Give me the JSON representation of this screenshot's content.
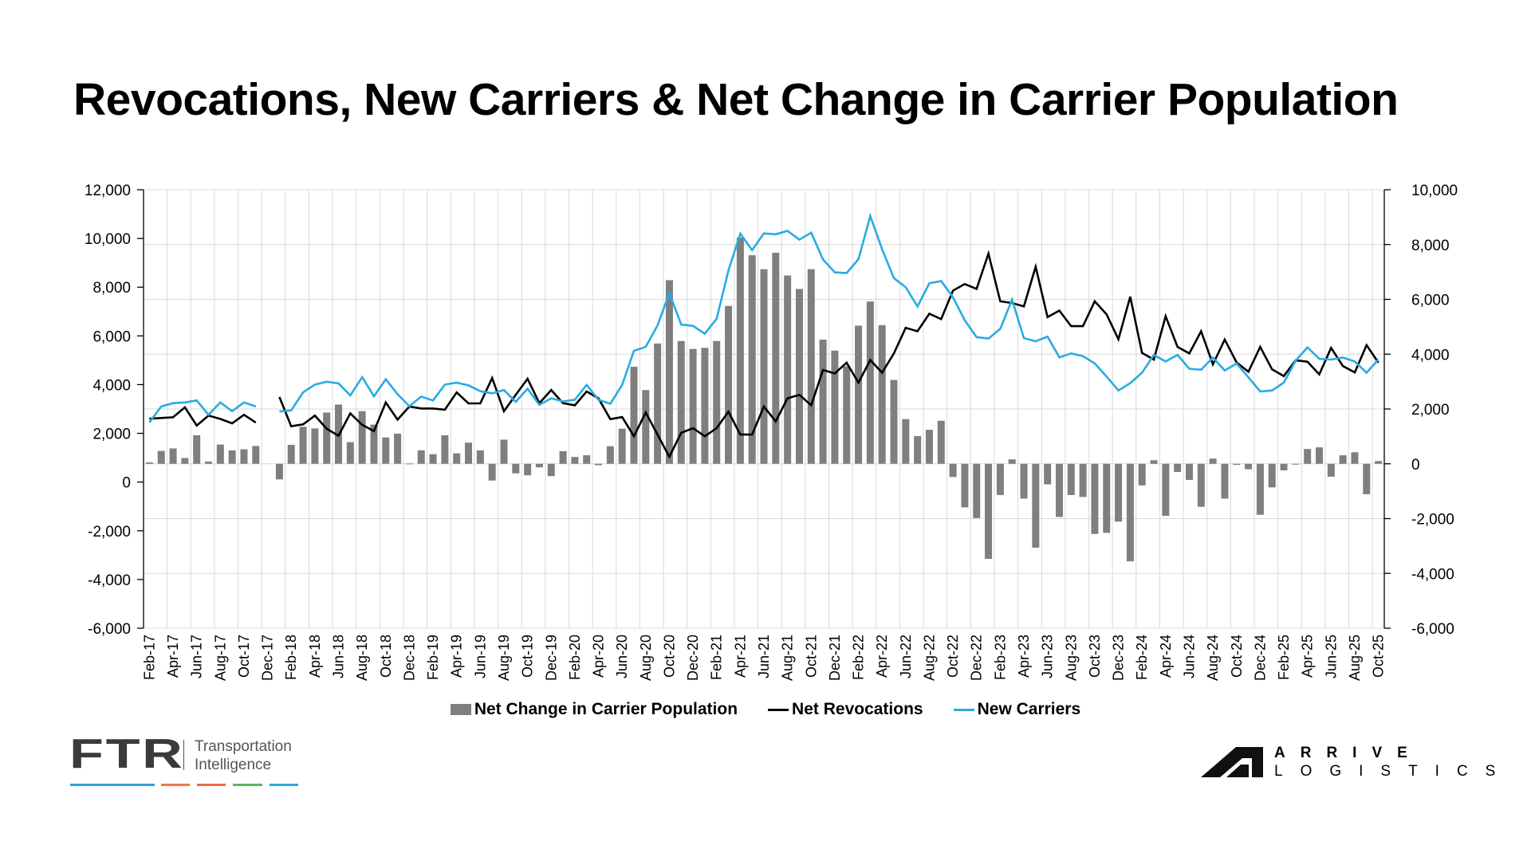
{
  "title": "Revocations, New Carriers & Net Change in Carrier Population",
  "legend": {
    "net_change": "Net Change in Carrier Population",
    "net_revocations": "Net Revocations",
    "new_carriers": "New Carriers"
  },
  "logos": {
    "ftr": {
      "mark": "FTR",
      "line1": "Transportation",
      "line2": "Intelligence"
    },
    "arrive": {
      "line1": "ARRIVE",
      "line2": "LOGISTICS"
    }
  },
  "colors": {
    "bar": "#7f7f7f",
    "revocations": "#000000",
    "new_carriers": "#29abe2",
    "grid": "#d9d9d9"
  },
  "chart_data": {
    "type": "bar+line",
    "title": "Revocations, New Carriers & Net Change in Carrier Population",
    "left_axis": {
      "min": -6000,
      "max": 12000,
      "step": 2000,
      "ticks": [
        "12,000",
        "10,000",
        "8,000",
        "6,000",
        "4,000",
        "2,000",
        "0",
        "-2,000",
        "-4,000",
        "-6,000"
      ],
      "series": [
        "Net Revocations",
        "New Carriers"
      ]
    },
    "right_axis": {
      "min": -6000,
      "max": 10000,
      "step": 2000,
      "ticks": [
        "10,000",
        "8,000",
        "6,000",
        "4,000",
        "2,000",
        "0",
        "-2,000",
        "-4,000",
        "-6,000"
      ],
      "series": [
        "Net Change in Carrier Population"
      ]
    },
    "legend_position": "bottom",
    "grid": true,
    "categories": [
      "Feb-17",
      "Mar-17",
      "Apr-17",
      "May-17",
      "Jun-17",
      "Jul-17",
      "Aug-17",
      "Sep-17",
      "Oct-17",
      "Nov-17",
      "Dec-17",
      "Jan-18",
      "Feb-18",
      "Mar-18",
      "Apr-18",
      "May-18",
      "Jun-18",
      "Jul-18",
      "Aug-18",
      "Sep-18",
      "Oct-18",
      "Nov-18",
      "Dec-18",
      "Jan-19",
      "Feb-19",
      "Mar-19",
      "Apr-19",
      "May-19",
      "Jun-19",
      "Jul-19",
      "Aug-19",
      "Sep-19",
      "Oct-19",
      "Nov-19",
      "Dec-19",
      "Jan-20",
      "Feb-20",
      "Mar-20",
      "Apr-20",
      "May-20",
      "Jun-20",
      "Jul-20",
      "Aug-20",
      "Sep-20",
      "Oct-20",
      "Nov-20",
      "Dec-20",
      "Jan-21",
      "Feb-21",
      "Mar-21",
      "Apr-21",
      "May-21",
      "Jun-21",
      "Jul-21",
      "Aug-21",
      "Sep-21",
      "Oct-21",
      "Nov-21",
      "Dec-21",
      "Jan-22",
      "Feb-22",
      "Mar-22",
      "Apr-22",
      "May-22",
      "Jun-22",
      "Jul-22",
      "Aug-22",
      "Sep-22",
      "Oct-22",
      "Nov-22",
      "Dec-22",
      "Jan-23",
      "Feb-23",
      "Mar-23",
      "Apr-23",
      "May-23",
      "Jun-23",
      "Jul-23",
      "Aug-23",
      "Sep-23",
      "Oct-23",
      "Nov-23",
      "Dec-23",
      "Jan-24",
      "Feb-24",
      "Mar-24",
      "Apr-24",
      "May-24",
      "Jun-24",
      "Jul-24",
      "Aug-24",
      "Sep-24",
      "Oct-24",
      "Nov-24",
      "Dec-24",
      "Jan-25",
      "Feb-25",
      "Mar-25",
      "Apr-25",
      "May-25",
      "Jun-25",
      "Jul-25",
      "Aug-25",
      "Sep-25",
      "Oct-25"
    ],
    "series": [
      {
        "name": "Net Change in Carrier Population",
        "type": "bar",
        "axis": "right",
        "values": [
          50,
          470,
          560,
          210,
          1040,
          80,
          700,
          490,
          530,
          650,
          null,
          -570,
          690,
          1350,
          1290,
          1870,
          2160,
          790,
          1920,
          1430,
          960,
          1100,
          10,
          490,
          350,
          1040,
          380,
          770,
          490,
          -610,
          880,
          -350,
          -420,
          -130,
          -450,
          460,
          250,
          310,
          -50,
          640,
          1280,
          3540,
          2690,
          4390,
          6700,
          4480,
          4190,
          4230,
          4480,
          5760,
          8250,
          7610,
          7100,
          7700,
          6870,
          6380,
          7100,
          4530,
          4130,
          3560,
          5040,
          5920,
          5060,
          3060,
          1630,
          1010,
          1240,
          1570,
          -480,
          -1590,
          -1980,
          -3470,
          -1140,
          160,
          -1270,
          -3060,
          -750,
          -1940,
          -1140,
          -1210,
          -2560,
          -2520,
          -2110,
          -3560,
          -790,
          130,
          -1900,
          -300,
          -590,
          -1570,
          190,
          -1270,
          -40,
          -200,
          -1860,
          -860,
          -240,
          -20,
          540,
          600,
          -470,
          310,
          420,
          -1110,
          100
        ]
      },
      {
        "name": "Net Revocations",
        "type": "line",
        "axis": "left",
        "values": [
          2600,
          2630,
          2660,
          3070,
          2320,
          2730,
          2590,
          2410,
          2760,
          2440,
          null,
          3490,
          2290,
          2370,
          2730,
          2190,
          1900,
          2820,
          2350,
          2090,
          3270,
          2560,
          3100,
          3020,
          3020,
          2970,
          3680,
          3230,
          3230,
          4270,
          2910,
          3580,
          4240,
          3240,
          3780,
          3240,
          3150,
          3720,
          3440,
          2580,
          2670,
          1880,
          2860,
          1950,
          1040,
          2020,
          2210,
          1880,
          2210,
          2890,
          1950,
          1950,
          3100,
          2490,
          3440,
          3580,
          3150,
          4600,
          4460,
          4900,
          4080,
          5010,
          4490,
          5280,
          6330,
          6190,
          6910,
          6690,
          7860,
          8130,
          7930,
          9380,
          7420,
          7350,
          7210,
          8840,
          6770,
          7040,
          6400,
          6400,
          7420,
          6880,
          5860,
          7610,
          5300,
          5030,
          6810,
          5550,
          5280,
          6190,
          4830,
          5850,
          4910,
          4530,
          5550,
          4630,
          4350,
          5000,
          4940,
          4420,
          5510,
          4760,
          4500,
          5620,
          4900
        ]
      },
      {
        "name": "New Carriers",
        "type": "line",
        "axis": "left",
        "values": [
          2450,
          3100,
          3240,
          3270,
          3350,
          2760,
          3270,
          2910,
          3270,
          3100,
          null,
          2900,
          2940,
          3680,
          4000,
          4120,
          4050,
          3560,
          4310,
          3520,
          4220,
          3610,
          3110,
          3510,
          3350,
          4000,
          4080,
          3970,
          3730,
          3640,
          3780,
          3290,
          3830,
          3170,
          3440,
          3310,
          3380,
          3990,
          3380,
          3210,
          3990,
          5390,
          5550,
          6430,
          7760,
          6470,
          6410,
          6090,
          6700,
          8680,
          10200,
          9520,
          10210,
          10170,
          10310,
          9950,
          10240,
          9140,
          8610,
          8580,
          9150,
          10920,
          9560,
          8370,
          8000,
          7210,
          8160,
          8250,
          7590,
          6640,
          5950,
          5890,
          6290,
          7490,
          5910,
          5780,
          5970,
          5120,
          5280,
          5170,
          4870,
          4330,
          3760,
          4060,
          4490,
          5220,
          4950,
          5220,
          4650,
          4610,
          5110,
          4580,
          4870,
          4300,
          3720,
          3760,
          4080,
          4990,
          5530,
          5060,
          5030,
          5110,
          4950,
          4490,
          5030
        ]
      }
    ]
  }
}
